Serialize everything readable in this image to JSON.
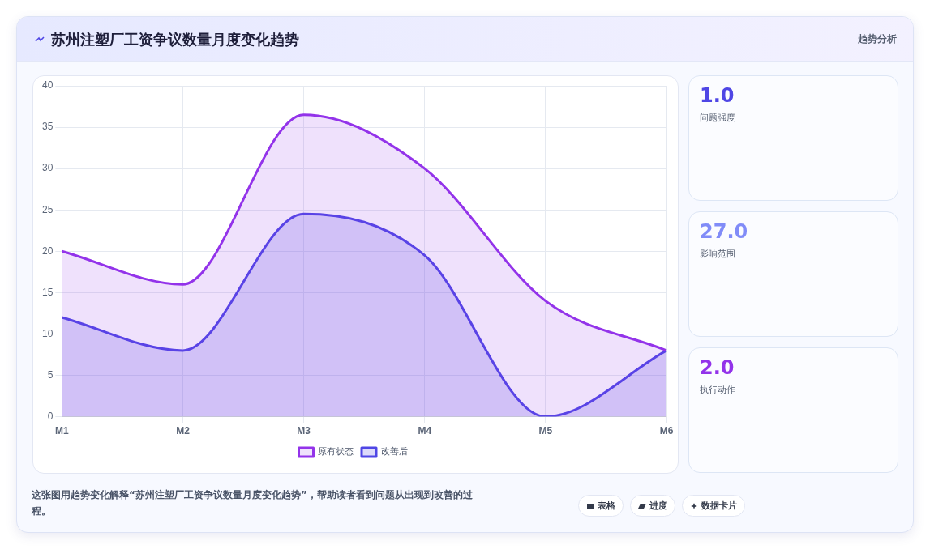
{
  "chart_data": [
    {
      "type": "area",
      "title": "苏州注塑厂工资争议数量月度变化趋势",
      "categories": [
        "M1",
        "M2",
        "M3",
        "M4",
        "M5",
        "M6"
      ],
      "series": [
        {
          "name": "原有状态",
          "color": "#9333ea",
          "values": [
            20,
            16,
            36.5,
            30,
            14,
            8
          ]
        },
        {
          "name": "改善后",
          "color": "#4f46e5",
          "values": [
            12,
            8,
            24.5,
            19.5,
            0,
            8
          ]
        }
      ],
      "ylim": [
        0,
        40
      ],
      "yticks": [
        0,
        5,
        10,
        15,
        20,
        25,
        30,
        35,
        40
      ],
      "grid": true,
      "legend": "bottom",
      "annotations": [
        "趋势分析",
        "这张图用趋势变化解释“苏州注塑厂工资争议数量月度变化趋势”，帮助读者看到问题从出现到改善的过程。",
        "表格",
        "进度",
        "数据卡片"
      ]
    },
    {
      "type": "other",
      "annotations": [
        "1.0",
        "问题强度",
        "27.0",
        "影响范围",
        "2.0",
        "执行动作"
      ]
    }
  ]
}
